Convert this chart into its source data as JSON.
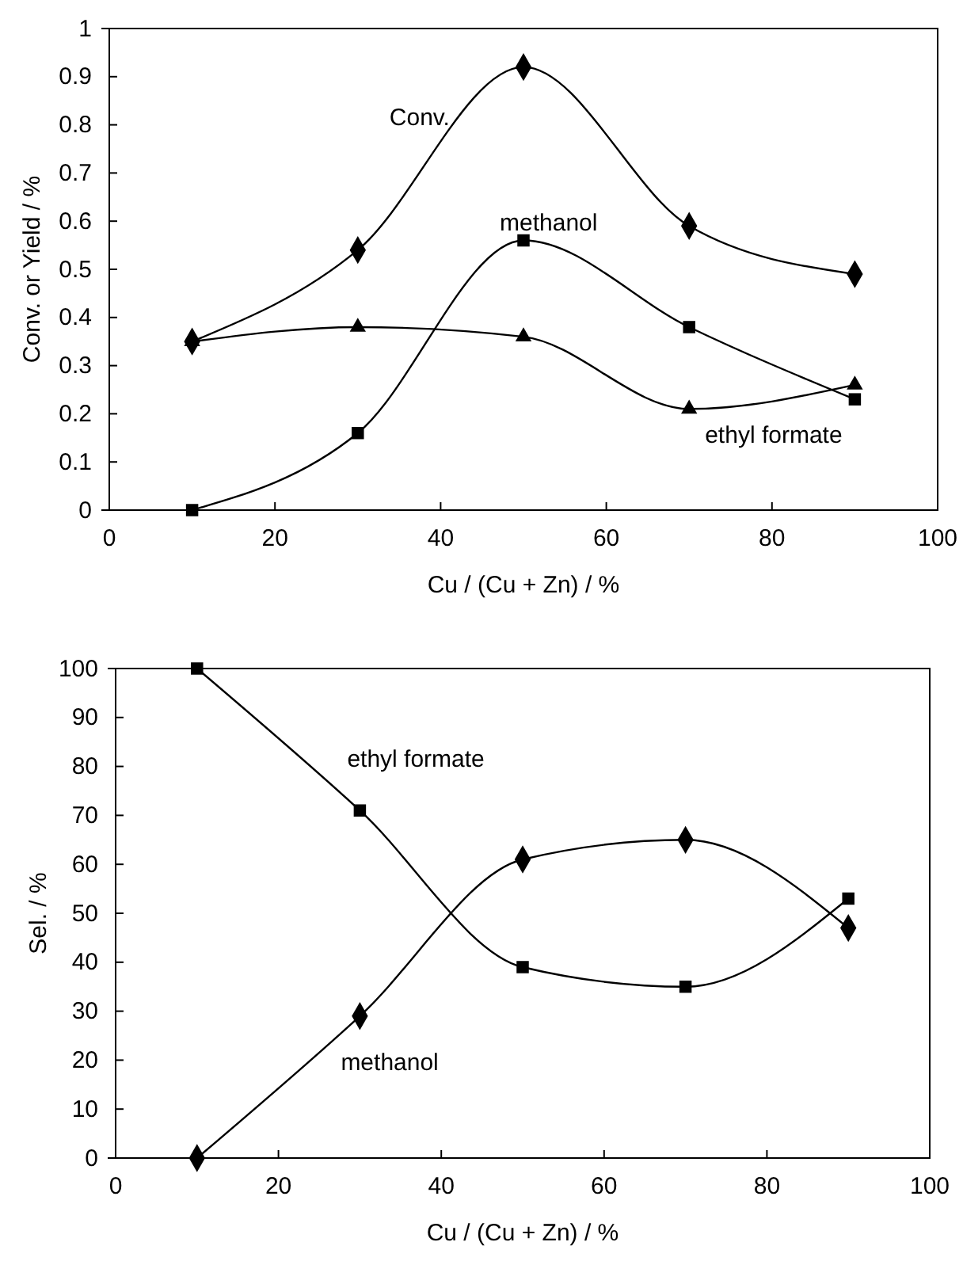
{
  "chart_data": [
    {
      "type": "line",
      "xlabel": "Cu /  (Cu + Zn) /  %",
      "ylabel": "Conv. or Yield / %",
      "x": [
        10,
        30,
        50,
        70,
        90
      ],
      "xlim": [
        0,
        100
      ],
      "xticks": [
        0,
        20,
        40,
        60,
        80,
        100
      ],
      "ylim": [
        0,
        1
      ],
      "yticks": [
        0,
        0.1,
        0.2,
        0.3,
        0.4,
        0.5,
        0.6,
        0.7,
        0.8,
        0.9,
        1
      ],
      "grid": false,
      "legend": false,
      "line_style": "solid",
      "series": [
        {
          "name": "Conv.",
          "color": "#000000",
          "marker": "diamond",
          "values": [
            0.35,
            0.54,
            0.92,
            0.59,
            0.49
          ]
        },
        {
          "name": "methanol",
          "color": "#000000",
          "marker": "square",
          "values": [
            0,
            0.16,
            0.56,
            0.38,
            0.23
          ]
        },
        {
          "name": "ethyl formate",
          "color": "#000000",
          "marker": "triangle",
          "values": [
            0.35,
            0.38,
            0.36,
            0.21,
            0.26
          ]
        }
      ]
    },
    {
      "type": "line",
      "xlabel": "Cu /  (Cu + Zn) /  %",
      "ylabel": "Sel. / %",
      "x": [
        10,
        30,
        50,
        70,
        90
      ],
      "xlim": [
        0,
        100
      ],
      "xticks": [
        0,
        20,
        40,
        60,
        80,
        100
      ],
      "ylim": [
        0,
        100
      ],
      "yticks": [
        0,
        10,
        20,
        30,
        40,
        50,
        60,
        70,
        80,
        90,
        100
      ],
      "grid": false,
      "legend": false,
      "line_style": "solid",
      "series": [
        {
          "name": "ethyl formate",
          "color": "#000000",
          "marker": "square",
          "values": [
            100,
            71,
            39,
            35,
            53
          ]
        },
        {
          "name": "methanol",
          "color": "#000000",
          "marker": "diamond",
          "values": [
            0,
            29,
            61,
            65,
            47
          ]
        }
      ]
    }
  ]
}
